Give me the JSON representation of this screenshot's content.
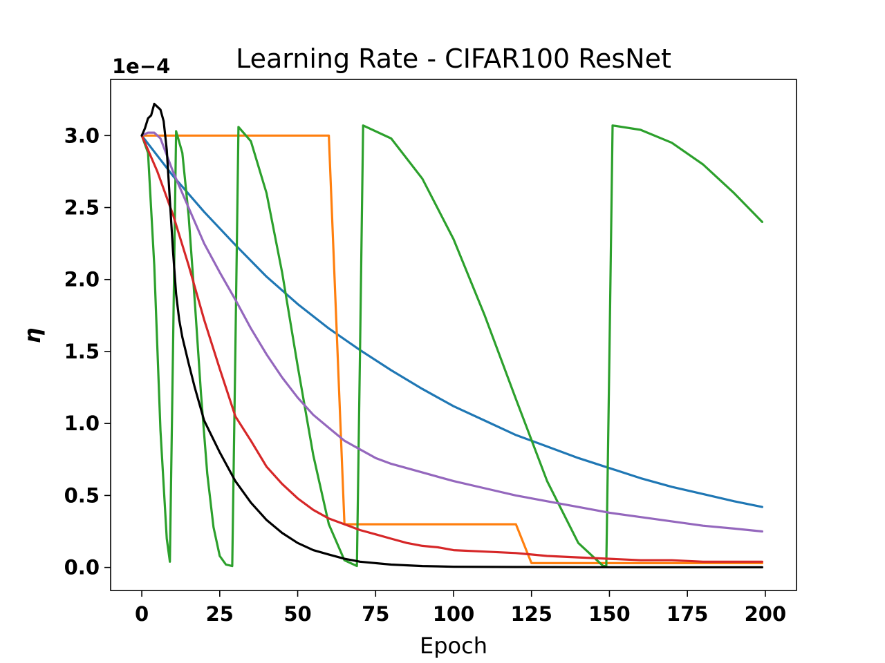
{
  "chart_data": {
    "type": "line",
    "title": "Learning Rate - CIFAR100 ResNet",
    "xlabel": "Epoch",
    "ylabel": "η",
    "y_offset_label": "1e−4",
    "xlim": [
      -10,
      210
    ],
    "ylim": [
      -0.16,
      3.39
    ],
    "x_ticks": [
      0,
      25,
      50,
      75,
      100,
      125,
      150,
      175,
      200
    ],
    "y_ticks": [
      0.0,
      0.5,
      1.0,
      1.5,
      2.0,
      2.5,
      3.0
    ],
    "x_tick_labels": [
      "0",
      "25",
      "50",
      "75",
      "100",
      "125",
      "150",
      "175",
      "200"
    ],
    "y_tick_labels": [
      "0.0",
      "0.5",
      "1.0",
      "1.5",
      "2.0",
      "2.5",
      "3.0"
    ],
    "grid": false,
    "series": [
      {
        "color": "#1f77b4",
        "x": [
          0,
          10,
          20,
          30,
          40,
          50,
          60,
          70,
          80,
          90,
          100,
          110,
          120,
          130,
          140,
          150,
          160,
          170,
          180,
          190,
          199
        ],
        "y": [
          3.0,
          2.72,
          2.47,
          2.24,
          2.02,
          1.83,
          1.66,
          1.51,
          1.37,
          1.24,
          1.12,
          1.02,
          0.92,
          0.84,
          0.76,
          0.69,
          0.62,
          0.56,
          0.51,
          0.46,
          0.42
        ]
      },
      {
        "color": "#ff7f0e",
        "x": [
          0,
          60,
          65,
          120,
          125,
          199
        ],
        "y": [
          3.0,
          3.0,
          0.3,
          0.3,
          0.03,
          0.03
        ]
      },
      {
        "color": "#2ca02c",
        "x": [
          0,
          2,
          4,
          6,
          8,
          9,
          10,
          11,
          13,
          15,
          17,
          19,
          21,
          23,
          25,
          27,
          29,
          30,
          31,
          35,
          40,
          45,
          50,
          55,
          60,
          65,
          69,
          70,
          71,
          80,
          90,
          100,
          110,
          120,
          130,
          140,
          148,
          149,
          150,
          151,
          160,
          170,
          180,
          190,
          199
        ],
        "y": [
          3.0,
          2.88,
          2.1,
          0.95,
          0.2,
          0.04,
          1.5,
          3.03,
          2.88,
          2.45,
          1.85,
          1.2,
          0.65,
          0.28,
          0.08,
          0.02,
          0.01,
          1.5,
          3.06,
          2.96,
          2.6,
          2.05,
          1.4,
          0.78,
          0.3,
          0.05,
          0.01,
          1.5,
          3.07,
          2.98,
          2.7,
          2.28,
          1.75,
          1.17,
          0.6,
          0.17,
          0.01,
          0.01,
          1.5,
          3.07,
          3.04,
          2.95,
          2.8,
          2.6,
          2.4
        ]
      },
      {
        "color": "#d62728",
        "x": [
          0,
          5,
          10,
          15,
          20,
          25,
          30,
          35,
          40,
          45,
          50,
          55,
          60,
          65,
          70,
          75,
          80,
          85,
          90,
          95,
          100,
          110,
          120,
          130,
          140,
          150,
          160,
          170,
          180,
          190,
          199
        ],
        "y": [
          3.0,
          2.75,
          2.45,
          2.1,
          1.72,
          1.38,
          1.05,
          0.88,
          0.7,
          0.58,
          0.48,
          0.4,
          0.34,
          0.3,
          0.26,
          0.23,
          0.2,
          0.17,
          0.15,
          0.14,
          0.12,
          0.11,
          0.1,
          0.08,
          0.07,
          0.06,
          0.05,
          0.05,
          0.04,
          0.04,
          0.04
        ]
      },
      {
        "color": "#9467bd",
        "x": [
          0,
          2,
          4,
          6,
          10,
          15,
          20,
          25,
          30,
          35,
          40,
          45,
          50,
          55,
          60,
          65,
          70,
          75,
          80,
          90,
          100,
          110,
          120,
          130,
          140,
          150,
          160,
          170,
          180,
          190,
          199
        ],
        "y": [
          3.0,
          3.02,
          3.02,
          2.98,
          2.75,
          2.5,
          2.25,
          2.05,
          1.86,
          1.66,
          1.48,
          1.32,
          1.18,
          1.06,
          0.97,
          0.88,
          0.82,
          0.76,
          0.72,
          0.66,
          0.6,
          0.55,
          0.5,
          0.46,
          0.42,
          0.38,
          0.35,
          0.32,
          0.29,
          0.27,
          0.25
        ]
      },
      {
        "color": "#000000",
        "x": [
          0,
          1,
          2,
          3,
          4,
          5,
          6,
          7,
          8,
          9,
          10,
          11,
          12,
          13,
          15,
          17,
          20,
          25,
          30,
          35,
          40,
          45,
          50,
          55,
          60,
          65,
          70,
          80,
          90,
          100,
          120,
          140,
          160,
          180,
          199
        ],
        "y": [
          3.0,
          3.05,
          3.12,
          3.14,
          3.22,
          3.2,
          3.18,
          3.1,
          2.9,
          2.55,
          2.2,
          1.9,
          1.72,
          1.6,
          1.42,
          1.25,
          1.02,
          0.8,
          0.6,
          0.45,
          0.33,
          0.24,
          0.17,
          0.12,
          0.09,
          0.06,
          0.04,
          0.02,
          0.01,
          0.005,
          0.003,
          0.002,
          0.001,
          0.001,
          0.001
        ]
      }
    ]
  }
}
